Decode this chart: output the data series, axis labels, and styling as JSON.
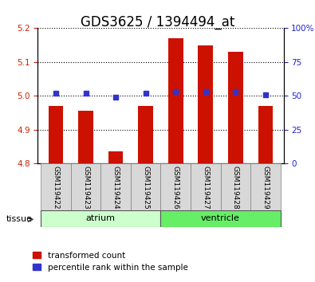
{
  "title": "GDS3625 / 1394494_at",
  "samples": [
    "GSM119422",
    "GSM119423",
    "GSM119424",
    "GSM119425",
    "GSM119426",
    "GSM119427",
    "GSM119428",
    "GSM119429"
  ],
  "red_values": [
    4.97,
    4.955,
    4.835,
    4.97,
    5.17,
    5.15,
    5.13,
    4.97
  ],
  "blue_values": [
    52,
    52,
    49,
    52,
    53,
    53,
    53,
    51
  ],
  "baseline": 4.8,
  "ylim_left": [
    4.8,
    5.2
  ],
  "ylim_right": [
    0,
    100
  ],
  "yticks_left": [
    4.8,
    4.9,
    5.0,
    5.1,
    5.2
  ],
  "yticks_right": [
    0,
    25,
    50,
    75,
    100
  ],
  "tissue_groups": [
    {
      "label": "atrium",
      "start": 0,
      "end": 4,
      "color": "#ccffcc"
    },
    {
      "label": "ventricle",
      "start": 4,
      "end": 8,
      "color": "#66ee66"
    }
  ],
  "red_color": "#cc1100",
  "blue_color": "#3333cc",
  "bar_width": 0.5,
  "plot_bg_color": "#ffffff",
  "title_fontsize": 12,
  "tick_label_fontsize": 7.5,
  "axis_label_color_left": "#cc2200",
  "axis_label_color_right": "#2222cc",
  "legend_red_label": "transformed count",
  "legend_blue_label": "percentile rank within the sample"
}
